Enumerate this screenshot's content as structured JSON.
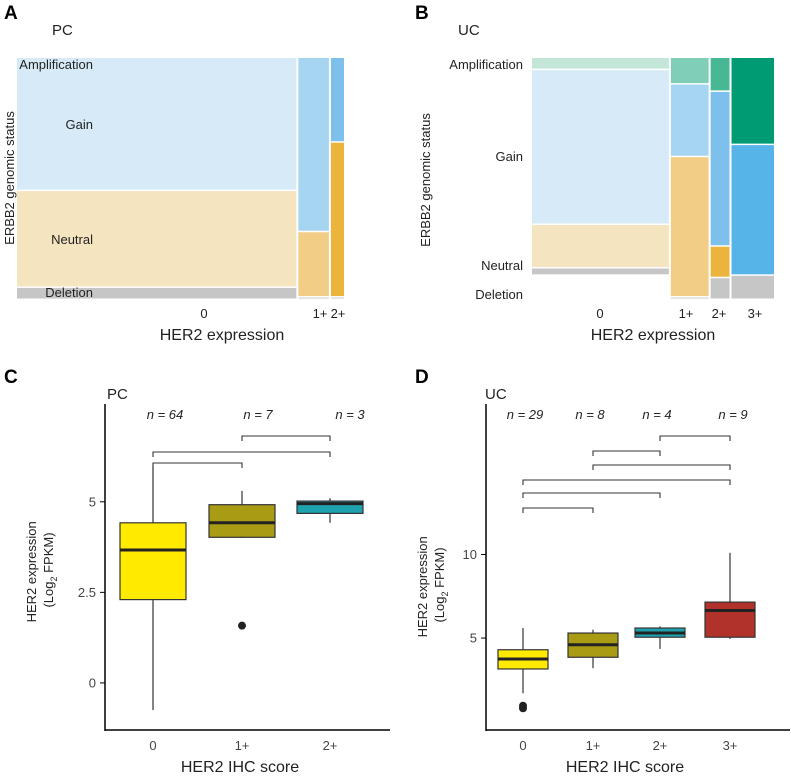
{
  "chart_data": [
    {
      "panel": "A",
      "type": "mosaic",
      "title": "PC",
      "xlabel": "HER2 expression",
      "ylabel": "ERBB2 genomic status",
      "categories": [
        "0",
        "1+",
        "2+"
      ],
      "column_widths": [
        64,
        7,
        3
      ],
      "rows": [
        "Amplification",
        "Gain",
        "Neutral",
        "Deletion"
      ],
      "proportions": [
        [
          0.0,
          0.55,
          0.4,
          0.05
        ],
        [
          0.0,
          0.72,
          0.27,
          0.01
        ],
        [
          0.0,
          0.35,
          0.64,
          0.01
        ]
      ],
      "colors": [
        [
          "#c3e6d9",
          "#d6ebf7",
          "#f5e4c0",
          "#c6c6c6"
        ],
        [
          "#80cdb8",
          "#a6d5f1",
          "#f2cd86",
          "#c6c6c6"
        ],
        [
          "#48b894",
          "#7dc0ec",
          "#ebb43d",
          "#c6c6c6"
        ]
      ]
    },
    {
      "panel": "B",
      "type": "mosaic",
      "title": "UC",
      "xlabel": "HER2 expression",
      "ylabel": "ERBB2 genomic status",
      "categories": [
        "0",
        "1+",
        "2+",
        "3+"
      ],
      "column_widths": [
        29,
        8,
        4,
        9
      ],
      "rows": [
        "Amplification",
        "Gain",
        "Neutral",
        "Deletion"
      ],
      "proportions": [
        [
          0.05,
          0.64,
          0.18,
          0.03
        ],
        [
          0.11,
          0.3,
          0.58,
          0.01
        ],
        [
          0.14,
          0.64,
          0.13,
          0.09
        ],
        [
          0.36,
          0.54,
          0.0,
          0.1
        ]
      ],
      "colors": [
        [
          "#c3e6d9",
          "#d6ebf7",
          "#f5e4c0",
          "#c6c6c6"
        ],
        [
          "#80cdb8",
          "#a6d5f1",
          "#f2cd86",
          "#c6c6c6"
        ],
        [
          "#48b894",
          "#7dc0ec",
          "#ebb43d",
          "#c6c6c6"
        ],
        [
          "#009b73",
          "#56b4e9",
          "#e69f00",
          "#c6c6c6"
        ]
      ]
    },
    {
      "panel": "C",
      "type": "boxplot",
      "title": "PC",
      "xlabel": "HER2 IHC score",
      "ylabel_line1": "HER2 expression",
      "ylabel_line2_pre": "(Log",
      "ylabel_sub": "2",
      "ylabel_line2_post": " FPKM)",
      "ylim": [
        -1.3,
        7.7
      ],
      "yticks": [
        0,
        2.5,
        5
      ],
      "ytick_labels": [
        "0",
        "2.5",
        "5"
      ],
      "categories": [
        "0",
        "1+",
        "2+"
      ],
      "counts": [
        "n = 64",
        "n = 7",
        "n = 3"
      ],
      "colors": [
        "#ffea00",
        "#a99c14",
        "#1fa2af"
      ],
      "boxes": [
        {
          "min": -0.75,
          "q1": 2.3,
          "median": 3.67,
          "q3": 4.42,
          "max": 5.97,
          "outliers": []
        },
        {
          "min": 4.0,
          "q1": 4.02,
          "median": 4.42,
          "q3": 4.92,
          "max": 5.3,
          "outliers": [
            1.58
          ]
        },
        {
          "min": 4.42,
          "q1": 4.68,
          "median": 4.95,
          "q3": 5.02,
          "max": 5.1,
          "outliers": []
        }
      ],
      "brackets": [
        [
          0,
          1
        ],
        [
          0,
          2
        ],
        [
          1,
          2
        ]
      ]
    },
    {
      "panel": "D",
      "type": "boxplot",
      "title": "UC",
      "xlabel": "HER2 IHC score",
      "ylabel_line1": "HER2 expression",
      "ylabel_line2_pre": "(Log",
      "ylabel_sub": "2",
      "ylabel_line2_post": " FPKM)",
      "ylim": [
        -0.5,
        19.0
      ],
      "yticks": [
        5,
        10
      ],
      "ytick_labels": [
        "5",
        "10"
      ],
      "categories": [
        "0",
        "1+",
        "2+",
        "3+"
      ],
      "counts": [
        "n = 29",
        "n = 8",
        "n = 4",
        "n = 9"
      ],
      "colors": [
        "#ffea00",
        "#a99c14",
        "#1fa2af",
        "#b0322a"
      ],
      "boxes": [
        {
          "min": 1.7,
          "q1": 3.15,
          "median": 3.75,
          "q3": 4.3,
          "max": 5.6,
          "outliers": [
            0.95,
            0.8
          ]
        },
        {
          "min": 3.2,
          "q1": 3.85,
          "median": 4.6,
          "q3": 5.3,
          "max": 5.5,
          "outliers": []
        },
        {
          "min": 4.35,
          "q1": 5.05,
          "median": 5.3,
          "q3": 5.6,
          "max": 5.7,
          "outliers": []
        },
        {
          "min": 4.95,
          "q1": 5.05,
          "median": 6.65,
          "q3": 7.15,
          "max": 10.1,
          "outliers": []
        }
      ],
      "brackets": [
        [
          0,
          1
        ],
        [
          0,
          2
        ],
        [
          0,
          3
        ],
        [
          1,
          3
        ],
        [
          1,
          2
        ],
        [
          2,
          3
        ]
      ]
    }
  ],
  "panel_labels": [
    "A",
    "B",
    "C",
    "D"
  ]
}
